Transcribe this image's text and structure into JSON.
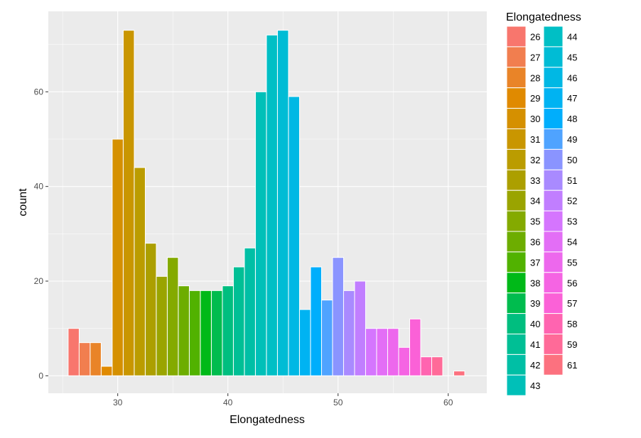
{
  "chart_data": {
    "type": "bar",
    "xlabel": "Elongatedness",
    "ylabel": "count",
    "xlim": [
      23.7,
      63.5
    ],
    "ylim": [
      -3.7,
      77
    ],
    "x_ticks": [
      30,
      40,
      50,
      60
    ],
    "y_ticks": [
      0,
      20,
      40,
      60
    ],
    "grid": true,
    "legend": {
      "title": "Elongatedness",
      "placement": "right",
      "columns": 2,
      "entries": [
        "26",
        "27",
        "28",
        "29",
        "30",
        "31",
        "32",
        "33",
        "34",
        "35",
        "36",
        "37",
        "38",
        "39",
        "40",
        "41",
        "42",
        "43",
        "44",
        "45",
        "46",
        "47",
        "48",
        "49",
        "50",
        "51",
        "52",
        "53",
        "54",
        "55",
        "56",
        "57",
        "58",
        "59",
        "61"
      ]
    },
    "categories": [
      26,
      27,
      28,
      29,
      30,
      31,
      32,
      33,
      34,
      35,
      36,
      37,
      38,
      39,
      40,
      41,
      42,
      43,
      44,
      45,
      46,
      47,
      48,
      49,
      50,
      51,
      52,
      53,
      54,
      55,
      56,
      57,
      58,
      59,
      61
    ],
    "values": [
      10,
      7,
      7,
      2,
      50,
      73,
      44,
      28,
      21,
      25,
      19,
      18,
      18,
      18,
      19,
      23,
      27,
      60,
      72,
      73,
      59,
      14,
      23,
      16,
      25,
      18,
      20,
      10,
      10,
      10,
      6,
      12,
      4,
      4,
      1
    ],
    "colors": [
      "#F8766D",
      "#F17E4F",
      "#E98428",
      "#E08A00",
      "#D59000",
      "#C99600",
      "#BB9C00",
      "#AC9F00",
      "#9AA400",
      "#84AA00",
      "#6DAD00",
      "#51B200",
      "#00B918",
      "#00BC4E",
      "#00BE7F",
      "#00BF95",
      "#00BFA5",
      "#00C0B8",
      "#00BFC5",
      "#00BCD5",
      "#00B8E4",
      "#00B3F2",
      "#00AEFC",
      "#4FA3FF",
      "#8A94FF",
      "#A98AFF",
      "#C17EFF",
      "#D575FE",
      "#E36EF6",
      "#ED68ED",
      "#F564E3",
      "#FB61D7",
      "#FF64B0",
      "#FF6A98",
      "#FC717F"
    ]
  }
}
